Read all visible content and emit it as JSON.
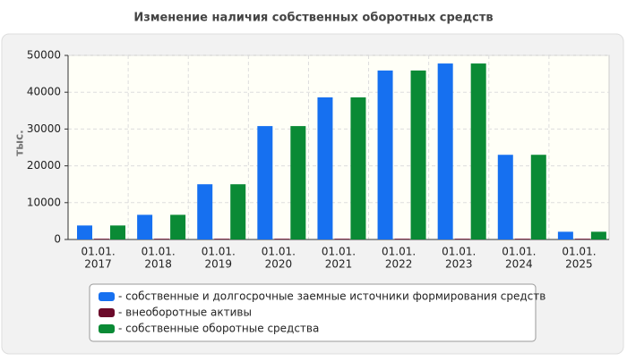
{
  "chart_data": {
    "type": "bar",
    "title": "Изменение наличия собственных оборотных средств",
    "y_label": "тыс.",
    "categories": [
      [
        "01.01.",
        "2017"
      ],
      [
        "01.01.",
        "2018"
      ],
      [
        "01.01.",
        "2019"
      ],
      [
        "01.01.",
        "2020"
      ],
      [
        "01.01.",
        "2021"
      ],
      [
        "01.01.",
        "2022"
      ],
      [
        "01.01.",
        "2023"
      ],
      [
        "01.01.",
        "2024"
      ],
      [
        "01.01.",
        "2025"
      ]
    ],
    "series": [
      {
        "name": "- собственные и долгосрочные заемные источники формирования средств",
        "color": "#1670f0",
        "values": [
          3800,
          6700,
          15000,
          30800,
          38600,
          45900,
          47800,
          23000,
          2100
        ]
      },
      {
        "name": "- внеоборотные активы",
        "color": "#6b0a2a",
        "values": [
          200,
          200,
          200,
          200,
          200,
          200,
          200,
          200,
          200
        ]
      },
      {
        "name": "- собственные оборотные средства",
        "color": "#0a8a35",
        "values": [
          3800,
          6700,
          15000,
          30800,
          38600,
          45900,
          47800,
          23000,
          2100
        ]
      }
    ],
    "ylim": [
      0,
      50000
    ],
    "yticks": [
      0,
      10000,
      20000,
      30000,
      40000,
      50000
    ],
    "grid": true
  }
}
